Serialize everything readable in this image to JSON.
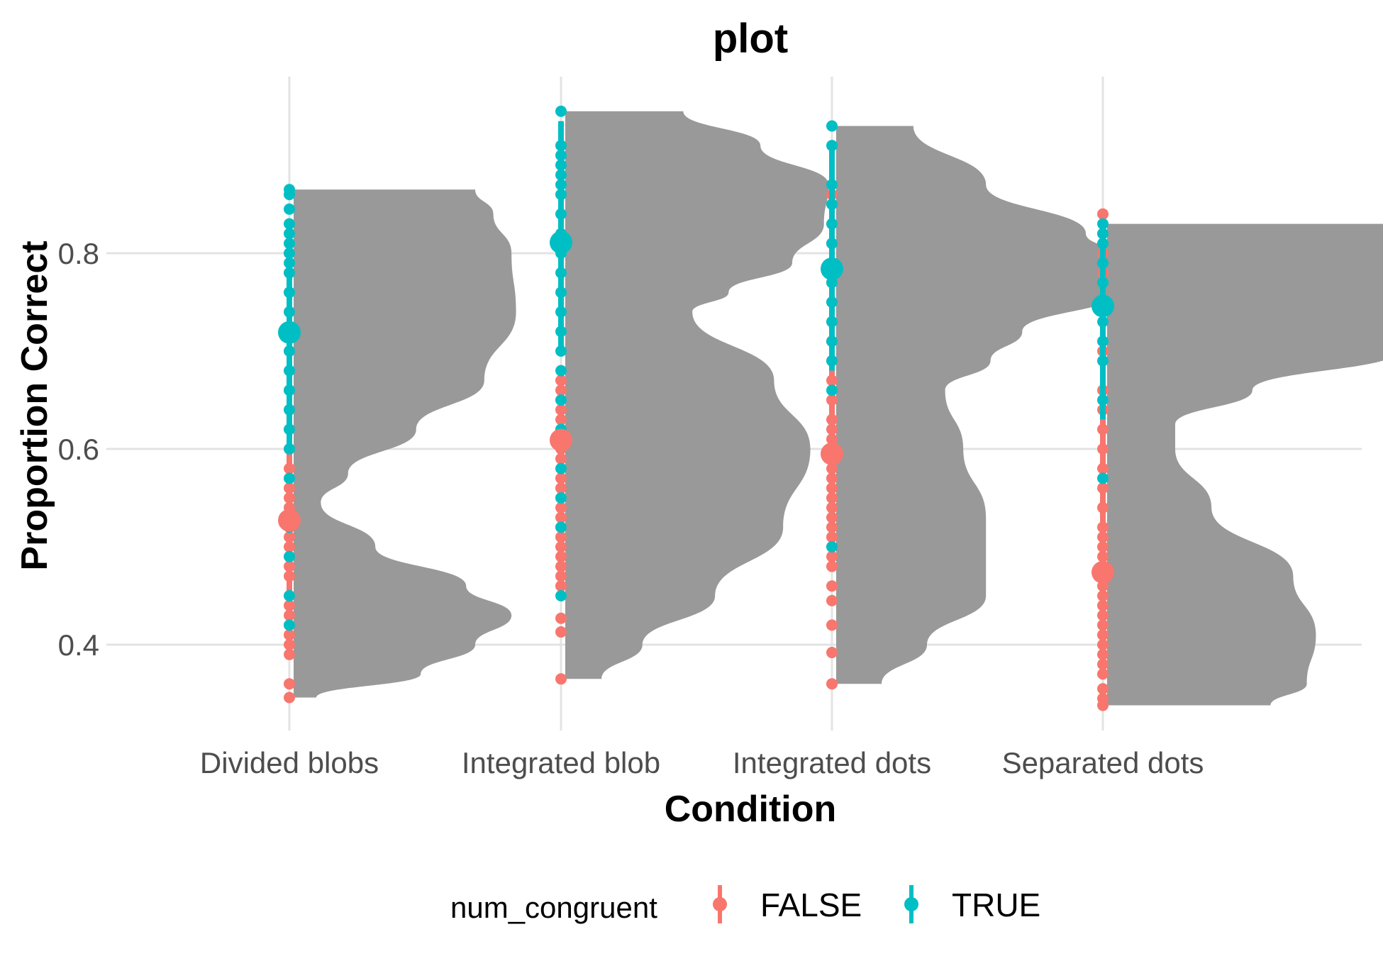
{
  "chart_data": {
    "type": "violin",
    "title": "plot",
    "xlabel": "Condition",
    "ylabel": "Proportion Correct",
    "categories": [
      "Divided blobs",
      "Integrated blob",
      "Integrated dots",
      "Separated dots"
    ],
    "ylim": [
      0.31,
      0.97
    ],
    "yticks": [
      0.4,
      0.6,
      0.8
    ],
    "ytick_labels": [
      "0.4",
      "0.6",
      "0.8"
    ],
    "grid": true,
    "legend": {
      "title": "num_congruent",
      "position": "bottom",
      "entries": [
        {
          "label": "FALSE",
          "color": "#f8766d"
        },
        {
          "label": "TRUE",
          "color": "#00bfc4"
        }
      ]
    },
    "violin_color": "#999999",
    "violins": [
      {
        "category": "Divided blobs",
        "y": [
          0.346,
          0.37,
          0.4,
          0.43,
          0.46,
          0.5,
          0.545,
          0.575,
          0.62,
          0.67,
          0.74,
          0.8,
          0.84,
          0.865
        ],
        "density": [
          0.05,
          0.28,
          0.4,
          0.48,
          0.38,
          0.18,
          0.06,
          0.12,
          0.27,
          0.42,
          0.49,
          0.48,
          0.44,
          0.4
        ]
      },
      {
        "category": "Integrated blob",
        "y": [
          0.365,
          0.4,
          0.45,
          0.52,
          0.6,
          0.67,
          0.74,
          0.76,
          0.79,
          0.83,
          0.87,
          0.91,
          0.945
        ],
        "density": [
          0.08,
          0.17,
          0.33,
          0.48,
          0.54,
          0.46,
          0.28,
          0.36,
          0.5,
          0.57,
          0.58,
          0.43,
          0.26
        ]
      },
      {
        "category": "Integrated dots",
        "y": [
          0.36,
          0.4,
          0.45,
          0.53,
          0.6,
          0.66,
          0.69,
          0.72,
          0.76,
          0.79,
          0.82,
          0.87,
          0.93
        ],
        "density": [
          0.1,
          0.2,
          0.33,
          0.33,
          0.28,
          0.24,
          0.34,
          0.41,
          0.62,
          0.67,
          0.55,
          0.33,
          0.17
        ]
      },
      {
        "category": "Separated dots",
        "y": [
          0.338,
          0.36,
          0.41,
          0.47,
          0.54,
          0.6,
          0.625,
          0.66,
          0.7,
          0.72,
          0.75,
          0.78,
          0.83
        ],
        "density": [
          0.36,
          0.44,
          0.46,
          0.41,
          0.23,
          0.15,
          0.15,
          0.32,
          0.64,
          0.77,
          0.73,
          0.76,
          0.92
        ]
      }
    ],
    "series": [
      {
        "name": "FALSE",
        "color": "#f8766d",
        "summary": [
          {
            "category": "Divided blobs",
            "mean": 0.527,
            "low": 0.42,
            "high": 0.595
          },
          {
            "category": "Integrated blob",
            "mean": 0.609,
            "low": 0.49,
            "high": 0.67
          },
          {
            "category": "Integrated dots",
            "mean": 0.595,
            "low": 0.48,
            "high": 0.684
          },
          {
            "category": "Separated dots",
            "mean": 0.474,
            "low": 0.39,
            "high": 0.63
          }
        ],
        "points": [
          {
            "category": "Divided blobs",
            "y": [
              0.346,
              0.36,
              0.39,
              0.4,
              0.41,
              0.42,
              0.43,
              0.44,
              0.45,
              0.47,
              0.48,
              0.49,
              0.5,
              0.51,
              0.52,
              0.53,
              0.54,
              0.55,
              0.56,
              0.57,
              0.58,
              0.6,
              0.62,
              0.64,
              0.66,
              0.68,
              0.7,
              0.72,
              0.74,
              0.76,
              0.78,
              0.8
            ]
          },
          {
            "category": "Integrated blob",
            "y": [
              0.365,
              0.413,
              0.427,
              0.46,
              0.47,
              0.48,
              0.49,
              0.5,
              0.51,
              0.52,
              0.53,
              0.54,
              0.55,
              0.56,
              0.57,
              0.58,
              0.59,
              0.6,
              0.61,
              0.62,
              0.63,
              0.64,
              0.65,
              0.66,
              0.67
            ]
          },
          {
            "category": "Integrated dots",
            "y": [
              0.36,
              0.392,
              0.42,
              0.445,
              0.46,
              0.48,
              0.49,
              0.5,
              0.51,
              0.52,
              0.53,
              0.54,
              0.55,
              0.56,
              0.57,
              0.58,
              0.59,
              0.6,
              0.61,
              0.62,
              0.63,
              0.65,
              0.67,
              0.69,
              0.71,
              0.73,
              0.75,
              0.77,
              0.79,
              0.81,
              0.83,
              0.85,
              0.86
            ]
          },
          {
            "category": "Separated dots",
            "y": [
              0.338,
              0.345,
              0.355,
              0.37,
              0.38,
              0.39,
              0.4,
              0.41,
              0.42,
              0.43,
              0.44,
              0.45,
              0.46,
              0.47,
              0.48,
              0.49,
              0.5,
              0.51,
              0.52,
              0.54,
              0.56,
              0.58,
              0.6,
              0.62,
              0.64,
              0.66,
              0.7,
              0.74,
              0.78,
              0.8,
              0.82,
              0.84
            ]
          }
        ]
      },
      {
        "name": "TRUE",
        "color": "#00bfc4",
        "summary": [
          {
            "category": "Divided blobs",
            "mean": 0.719,
            "low": 0.6,
            "high": 0.82
          },
          {
            "category": "Integrated blob",
            "mean": 0.811,
            "low": 0.7,
            "high": 0.935
          },
          {
            "category": "Integrated dots",
            "mean": 0.784,
            "low": 0.68,
            "high": 0.915
          },
          {
            "category": "Separated dots",
            "mean": 0.746,
            "low": 0.63,
            "high": 0.83
          }
        ],
        "points": [
          {
            "category": "Divided blobs",
            "y": [
              0.42,
              0.45,
              0.49,
              0.52,
              0.57,
              0.6,
              0.62,
              0.64,
              0.66,
              0.68,
              0.7,
              0.72,
              0.74,
              0.76,
              0.78,
              0.79,
              0.8,
              0.81,
              0.82,
              0.83,
              0.845,
              0.86,
              0.865
            ]
          },
          {
            "category": "Integrated blob",
            "y": [
              0.45,
              0.52,
              0.55,
              0.58,
              0.62,
              0.65,
              0.68,
              0.7,
              0.72,
              0.74,
              0.76,
              0.78,
              0.8,
              0.82,
              0.84,
              0.86,
              0.87,
              0.88,
              0.89,
              0.9,
              0.91,
              0.945
            ]
          },
          {
            "category": "Integrated dots",
            "y": [
              0.5,
              0.6,
              0.66,
              0.69,
              0.71,
              0.73,
              0.75,
              0.77,
              0.79,
              0.81,
              0.83,
              0.85,
              0.87,
              0.91,
              0.93
            ]
          },
          {
            "category": "Separated dots",
            "y": [
              0.57,
              0.65,
              0.69,
              0.71,
              0.73,
              0.75,
              0.77,
              0.79,
              0.81,
              0.82,
              0.83
            ]
          }
        ]
      }
    ]
  }
}
